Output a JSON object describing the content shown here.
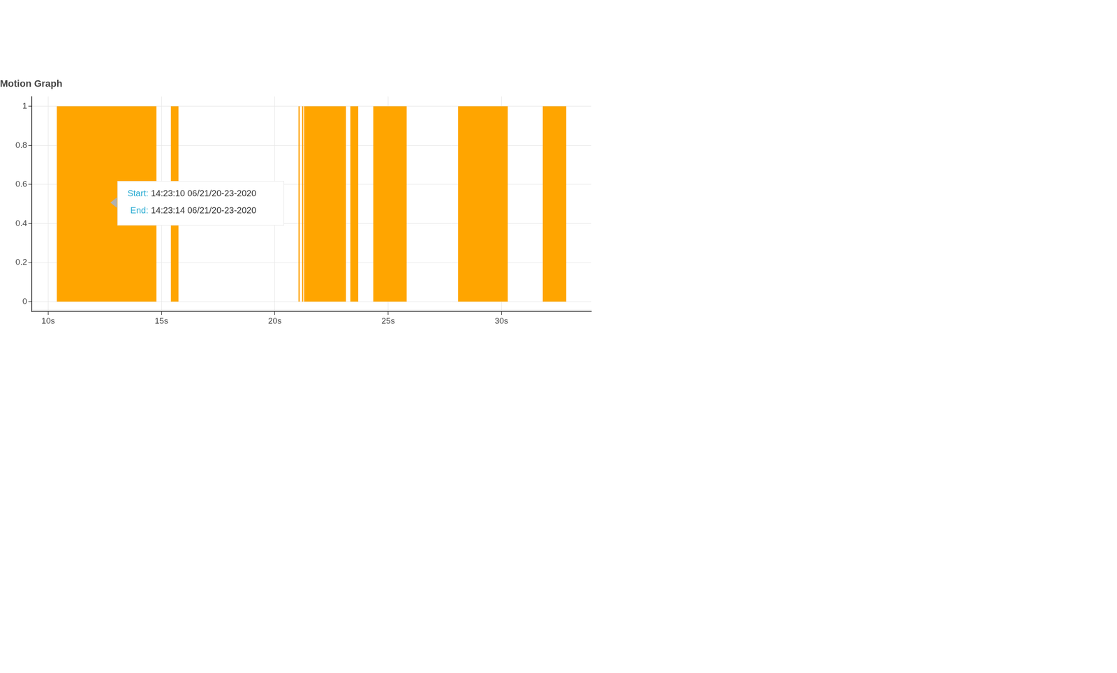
{
  "chart_data": {
    "type": "bar",
    "title": "Motion Graph",
    "x": [
      [
        10.38,
        14.78
      ],
      [
        15.41,
        15.75
      ],
      [
        21.04,
        21.1
      ],
      [
        21.2,
        21.26
      ],
      [
        21.29,
        23.14
      ],
      [
        23.33,
        23.68
      ],
      [
        24.34,
        25.82
      ],
      [
        28.08,
        30.28
      ],
      [
        31.82,
        32.86
      ]
    ],
    "values": [
      1,
      1,
      1,
      1,
      1,
      1,
      1,
      1,
      1
    ],
    "color": "#ffa500",
    "xlim": [
      9.28,
      33.96
    ],
    "xticks": [
      {
        "value": 10,
        "label": "10s"
      },
      {
        "value": 15,
        "label": "15s"
      },
      {
        "value": 20,
        "label": "20s"
      },
      {
        "value": 25,
        "label": "25s"
      },
      {
        "value": 30,
        "label": "30s"
      }
    ],
    "ylim": [
      -0.05,
      1.05
    ],
    "yticks": [
      0,
      0.2,
      0.4,
      0.6,
      0.8,
      1
    ],
    "grid": true,
    "annotations": [
      {
        "label": "Start:",
        "text": "14:23:10 06/21/20-23-2020"
      },
      {
        "label": "End:",
        "text": "14:23:14 06/21/20-23-2020"
      }
    ]
  }
}
